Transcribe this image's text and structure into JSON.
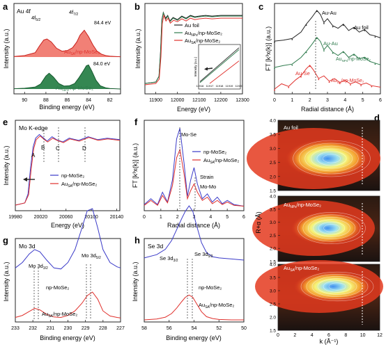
{
  "colors": {
    "black": "#222222",
    "red": "#e0302c",
    "red_fill": "#ee6a5e",
    "green": "#2e7a4c",
    "green_fill": "#1f7a3f",
    "blue": "#3a3ac8",
    "grid": "#999999"
  },
  "chart_data": [
    {
      "panel": "a",
      "type": "line",
      "xlabel": "Binding energy (eV)",
      "ylabel": "Intensity (a.u.)",
      "xlim": [
        91,
        81
      ],
      "xticks": [
        "90",
        "88",
        "86",
        "84",
        "82"
      ],
      "labels": {
        "title": "Au 4f",
        "f72": "4f",
        "f72_sub": "7/2",
        "f52": "4f",
        "f52_sub": "5/2",
        "e1": "84.4 eV",
        "e2": "84.0 eV",
        "s1": "Au",
        "s1_sub": "SA",
        "s1_rest": "/np-MoSe₂",
        "s2": "Au",
        "s2_sub": "NPs",
        "s2_rest": "/np-MoSe₂"
      },
      "series": [
        {
          "name": "Au_SA/np-MoSe₂",
          "color": "red",
          "x": [
            91,
            90,
            89,
            88.6,
            88.2,
            87.9,
            87.5,
            87,
            86.5,
            86,
            85.5,
            85.1,
            84.8,
            84.4,
            84.0,
            83.6,
            83.2,
            82.8,
            82.4,
            82,
            81.5,
            81
          ],
          "y": [
            0.02,
            0.05,
            0.15,
            0.38,
            0.58,
            0.62,
            0.52,
            0.3,
            0.2,
            0.22,
            0.32,
            0.52,
            0.75,
            0.92,
            0.7,
            0.42,
            0.2,
            0.1,
            0.05,
            0.03,
            0.02,
            0.01
          ]
        },
        {
          "name": "Au_NPs/np-MoSe₂",
          "color": "green",
          "x": [
            91,
            90,
            89,
            88.5,
            88.0,
            87.7,
            87.3,
            86.8,
            86.3,
            85.8,
            85.3,
            84.9,
            84.5,
            84.2,
            84.0,
            83.7,
            83.3,
            82.9,
            82.4,
            82,
            81.5,
            81
          ],
          "y": [
            0.01,
            0.03,
            0.08,
            0.2,
            0.52,
            0.63,
            0.48,
            0.22,
            0.12,
            0.13,
            0.22,
            0.45,
            0.72,
            0.93,
            0.96,
            0.72,
            0.35,
            0.13,
            0.05,
            0.02,
            0.01,
            0.0
          ]
        }
      ]
    },
    {
      "panel": "b",
      "type": "line",
      "xlabel": "Energy (eV)",
      "ylabel": "Intensity (a.u.)",
      "xlim": [
        11850,
        12300
      ],
      "xticks": [
        "11900",
        "12000",
        "12100",
        "12200",
        "12300"
      ],
      "legend": [
        {
          "label": "Au foil",
          "color": "black"
        },
        {
          "label": "Au",
          "sub": "NPs",
          "rest": "/np-MoSe₂",
          "color": "green"
        },
        {
          "label": "Au",
          "sub": "SA",
          "rest": "/np-MoSe₂",
          "color": "red"
        }
      ],
      "series": [
        {
          "name": "Au foil",
          "color": "black",
          "x": [
            11850,
            11900,
            11915,
            11922,
            11928,
            11935,
            11945,
            11955,
            11965,
            11980,
            12000,
            12020,
            12040,
            12060,
            12080,
            12100,
            12130,
            12160,
            12200,
            12250,
            12300
          ],
          "y": [
            0.0,
            0.02,
            0.1,
            0.45,
            0.9,
            1.0,
            0.92,
            0.96,
            0.88,
            0.93,
            0.9,
            0.95,
            0.92,
            0.96,
            0.94,
            0.95,
            0.96,
            0.95,
            0.96,
            0.96,
            0.96
          ]
        },
        {
          "name": "Au_NPs/np-MoSe₂",
          "color": "green",
          "x": [
            11850,
            11900,
            11915,
            11922,
            11928,
            11935,
            11945,
            11955,
            11965,
            11980,
            12000,
            12020,
            12040,
            12060,
            12080,
            12100,
            12130,
            12160,
            12200,
            12250,
            12300
          ],
          "y": [
            0.0,
            0.02,
            0.1,
            0.42,
            0.88,
            1.0,
            0.9,
            0.95,
            0.87,
            0.92,
            0.89,
            0.94,
            0.91,
            0.95,
            0.93,
            0.94,
            0.95,
            0.94,
            0.95,
            0.95,
            0.95
          ]
        },
        {
          "name": "Au_SA/np-MoSe₂",
          "color": "red",
          "x": [
            11850,
            11900,
            11916,
            11924,
            11930,
            11937,
            11947,
            11957,
            11967,
            11982,
            12000,
            12020,
            12040,
            12060,
            12080,
            12100,
            12130,
            12160,
            12200,
            12250,
            12300
          ],
          "y": [
            0.0,
            0.02,
            0.08,
            0.4,
            0.86,
            0.98,
            0.9,
            0.94,
            0.87,
            0.91,
            0.89,
            0.93,
            0.9,
            0.94,
            0.92,
            0.93,
            0.94,
            0.93,
            0.94,
            0.94,
            0.94
          ]
        }
      ],
      "inset": {
        "ylabel": "Intensity (a.u.)",
        "xticks": [
          "11916",
          "11917",
          "11918",
          "11919",
          "11920"
        ],
        "xlim": [
          11916,
          11920
        ],
        "series": [
          {
            "color": "black",
            "x": [
              11916,
              11920
            ],
            "y": [
              0.05,
              0.95
            ]
          },
          {
            "color": "green",
            "x": [
              11916,
              11920
            ],
            "y": [
              0.02,
              0.9
            ]
          },
          {
            "color": "red",
            "x": [
              11917,
              11920
            ],
            "y": [
              0.0,
              0.6
            ]
          }
        ]
      }
    },
    {
      "panel": "c",
      "type": "line",
      "xlabel": "Radial distance (Å)",
      "ylabel": "FT [k³x(k)] (a.u.)",
      "xlim": [
        0,
        6
      ],
      "xticks": [
        "0",
        "1",
        "2",
        "3",
        "4",
        "5",
        "6"
      ],
      "labels": {
        "au_au_1": "Au-Au",
        "au_foil": "Au foil",
        "au_au_2": "Au-Au",
        "au_nps": "Au",
        "au_nps_sub": "NPs",
        "au_nps_rest": "/np-MoSe₂",
        "au_se": "Au-Se",
        "au_sa": "Au",
        "au_sa_sub": "SA",
        "au_sa_rest": "/np-MoSe₂"
      },
      "series": [
        {
          "name": "Au foil",
          "color": "black",
          "x": [
            0,
            0.5,
            1,
            1.5,
            1.8,
            2.1,
            2.4,
            2.6,
            2.8,
            3.0,
            3.3,
            3.6,
            3.9,
            4.2,
            4.5,
            4.8,
            5.1,
            5.4,
            5.7,
            6
          ],
          "y": [
            0.02,
            0.05,
            0.1,
            0.3,
            0.55,
            0.75,
            0.98,
            0.85,
            0.6,
            0.72,
            0.5,
            0.42,
            0.55,
            0.35,
            0.45,
            0.3,
            0.38,
            0.22,
            0.18,
            0.12
          ]
        },
        {
          "name": "Au_NPs/np-MoSe₂",
          "color": "green",
          "x": [
            0,
            0.5,
            1,
            1.5,
            1.8,
            2.1,
            2.4,
            2.6,
            2.8,
            3.0,
            3.3,
            3.6,
            3.9,
            4.2,
            4.5,
            4.8,
            5.1,
            5.4,
            5.7,
            6
          ],
          "y": [
            0.02,
            0.08,
            0.12,
            0.32,
            0.5,
            0.7,
            0.92,
            0.8,
            0.55,
            0.68,
            0.48,
            0.38,
            0.5,
            0.32,
            0.42,
            0.28,
            0.33,
            0.2,
            0.15,
            0.1
          ]
        },
        {
          "name": "Au_SA/np-MoSe₂",
          "color": "red",
          "x": [
            0,
            0.4,
            0.8,
            1.2,
            1.5,
            1.8,
            2.0,
            2.2,
            2.5,
            2.8,
            3.1,
            3.4,
            3.7,
            4.0,
            4.3,
            4.6,
            4.9,
            5.2,
            5.5,
            6
          ],
          "y": [
            0.05,
            0.25,
            0.15,
            0.4,
            0.55,
            0.82,
            0.95,
            0.78,
            0.45,
            0.55,
            0.35,
            0.45,
            0.3,
            0.38,
            0.25,
            0.32,
            0.22,
            0.28,
            0.18,
            0.12
          ]
        }
      ]
    },
    {
      "panel": "e",
      "type": "line",
      "xlabel": "Energy (eV)",
      "ylabel": "Intensity (a.u.)",
      "xlim": [
        19980,
        20145
      ],
      "xticks": [
        "19980",
        "20020",
        "20060",
        "20100",
        "20140"
      ],
      "labels": {
        "title": "Mo  K-edge",
        "A": "A",
        "B": "B",
        "C": "C",
        "D": "D"
      },
      "legend": [
        {
          "label": "np-MoSe₂",
          "color": "blue"
        },
        {
          "label": "Au",
          "sub": "SA",
          "rest": "/np-MoSe₂",
          "color": "red"
        }
      ],
      "series": [
        {
          "name": "np-MoSe₂",
          "color": "blue",
          "x": [
            19980,
            19995,
            20000,
            20004,
            20008,
            20012,
            20018,
            20025,
            20030,
            20038,
            20045,
            20055,
            20065,
            20080,
            20095,
            20110,
            20125,
            20145
          ],
          "y": [
            0.0,
            0.03,
            0.15,
            0.5,
            0.78,
            0.9,
            0.95,
            0.9,
            0.86,
            0.92,
            0.88,
            0.85,
            0.9,
            0.87,
            0.92,
            0.88,
            0.9,
            0.88
          ]
        },
        {
          "name": "Au_SA/np-MoSe₂",
          "color": "red",
          "x": [
            19980,
            19995,
            20001,
            20005,
            20009,
            20013,
            20019,
            20026,
            20031,
            20039,
            20046,
            20056,
            20066,
            20081,
            20096,
            20111,
            20126,
            20145
          ],
          "y": [
            0.0,
            0.03,
            0.14,
            0.48,
            0.76,
            0.88,
            0.93,
            0.88,
            0.85,
            0.9,
            0.87,
            0.84,
            0.89,
            0.86,
            0.91,
            0.87,
            0.89,
            0.87
          ]
        }
      ]
    },
    {
      "panel": "f",
      "type": "line",
      "xlabel": "Radial distance (Å)",
      "ylabel": "FT [k³x(k)] (a.u.)",
      "xlim": [
        0,
        6
      ],
      "xticks": [
        "0",
        "1",
        "2",
        "3",
        "4",
        "5",
        "6"
      ],
      "labels": {
        "mose": "Mo-Se",
        "strain": "Strain",
        "momo": "Mo-Mo"
      },
      "legend": [
        {
          "label": "np-MoSe₂",
          "color": "blue"
        },
        {
          "label": "Au",
          "sub": "SA",
          "rest": "/np-MoSe₂",
          "color": "red"
        }
      ],
      "series": [
        {
          "name": "np-MoSe₂",
          "color": "blue",
          "x": [
            0,
            0.4,
            0.8,
            1.1,
            1.4,
            1.7,
            1.95,
            2.15,
            2.4,
            2.6,
            2.8,
            3.0,
            3.2,
            3.5,
            3.8,
            4.1,
            4.4,
            4.7,
            5.0,
            5.4,
            6
          ],
          "y": [
            0.05,
            0.12,
            0.05,
            0.2,
            0.08,
            0.35,
            0.85,
            0.98,
            0.55,
            0.15,
            0.35,
            0.5,
            0.3,
            0.12,
            0.18,
            0.08,
            0.14,
            0.06,
            0.1,
            0.05,
            0.03
          ]
        },
        {
          "name": "Au_SA/np-MoSe₂",
          "color": "red",
          "x": [
            0,
            0.4,
            0.8,
            1.1,
            1.4,
            1.7,
            1.95,
            2.15,
            2.4,
            2.6,
            2.8,
            3.0,
            3.2,
            3.5,
            3.8,
            4.1,
            4.4,
            4.7,
            5.0,
            5.4,
            6
          ],
          "y": [
            0.04,
            0.1,
            0.04,
            0.16,
            0.07,
            0.28,
            0.62,
            0.72,
            0.42,
            0.12,
            0.22,
            0.3,
            0.2,
            0.1,
            0.14,
            0.06,
            0.1,
            0.05,
            0.08,
            0.04,
            0.03
          ]
        }
      ]
    },
    {
      "panel": "g",
      "type": "line",
      "xlabel": "Binding energy (eV)",
      "ylabel": "Intensity (a.u.)",
      "xlim": [
        233,
        227
      ],
      "xticks": [
        "233",
        "232",
        "231",
        "230",
        "229",
        "228",
        "227"
      ],
      "labels": {
        "title": "Mo 3d",
        "d32": "Mo 3d",
        "d32_sub": "3/2",
        "d52": "Mo 3d",
        "d52_sub": "5/2",
        "s1": "np-MoSe₂",
        "s2": "Au",
        "s2_sub": "SA",
        "s2_rest": "/np-MoSe₂"
      },
      "series": [
        {
          "name": "np-MoSe₂",
          "color": "blue",
          "x": [
            233,
            232.6,
            232.2,
            231.9,
            231.6,
            231.2,
            230.8,
            230.4,
            230.0,
            229.6,
            229.2,
            228.9,
            228.6,
            228.3,
            228.0,
            227.6,
            227.2,
            227
          ],
          "y": [
            0.45,
            0.5,
            0.58,
            0.62,
            0.6,
            0.52,
            0.45,
            0.44,
            0.5,
            0.62,
            0.82,
            0.98,
            1.0,
            0.82,
            0.62,
            0.5,
            0.46,
            0.45
          ]
        },
        {
          "name": "Au_SA/np-MoSe₂",
          "color": "red",
          "x": [
            233,
            232.6,
            232.2,
            231.9,
            231.6,
            231.2,
            230.8,
            230.4,
            230.0,
            229.6,
            229.2,
            228.9,
            228.6,
            228.3,
            228.0,
            227.6,
            227.2,
            227
          ],
          "y": [
            0.02,
            0.06,
            0.14,
            0.2,
            0.17,
            0.08,
            0.03,
            0.02,
            0.06,
            0.15,
            0.3,
            0.45,
            0.52,
            0.38,
            0.15,
            0.05,
            0.02,
            0.01
          ]
        }
      ]
    },
    {
      "panel": "h",
      "type": "line",
      "xlabel": "Binding energy (eV)",
      "ylabel": "Intensity (a.u.)",
      "xlim": [
        58,
        50
      ],
      "xticks": [
        "58",
        "56",
        "54",
        "52",
        "50"
      ],
      "labels": {
        "title": "Se 3d",
        "d32": "Se 3d",
        "d32_sub": "3/2",
        "d52": "Se 3d",
        "d52_sub": "5/2",
        "s1": "np-MoSe₂",
        "s2": "Au",
        "s2_sub": "SA",
        "s2_rest": "/np-MoSe₂"
      },
      "series": [
        {
          "name": "np-MoSe₂",
          "color": "blue",
          "x": [
            58,
            57,
            56.3,
            55.8,
            55.4,
            55.0,
            54.7,
            54.4,
            54.1,
            53.8,
            53.4,
            53.0,
            52.5,
            52,
            51,
            50
          ],
          "y": [
            0.52,
            0.55,
            0.6,
            0.68,
            0.78,
            0.88,
            0.95,
            1.0,
            0.95,
            0.82,
            0.66,
            0.57,
            0.53,
            0.52,
            0.51,
            0.5
          ]
        },
        {
          "name": "Au_SA/np-MoSe₂",
          "color": "red",
          "x": [
            58,
            57,
            56.3,
            55.8,
            55.4,
            55.0,
            54.7,
            54.4,
            54.1,
            53.8,
            53.4,
            53.0,
            52.5,
            52,
            51,
            50
          ],
          "y": [
            0.0,
            0.02,
            0.06,
            0.14,
            0.26,
            0.4,
            0.5,
            0.55,
            0.5,
            0.36,
            0.18,
            0.07,
            0.03,
            0.01,
            0.0,
            0.0
          ]
        }
      ]
    },
    {
      "panel": "d",
      "type": "heatmap",
      "xlabel": "k (Å⁻¹)",
      "ylabel": "R+α (Å)",
      "xlim": [
        0,
        12
      ],
      "ylim": [
        1.5,
        4.0
      ],
      "xticks": [
        "0",
        "2",
        "4",
        "6",
        "8",
        "10",
        "12"
      ],
      "yticks": [
        "1.5",
        "2.0",
        "2.5",
        "3.0",
        "3.5",
        "4.0"
      ],
      "maps": [
        {
          "title": "Au foil"
        },
        {
          "title": "Au",
          "sub": "NPs",
          "rest": "/np-MoSe₂"
        },
        {
          "title": "Au",
          "sub": "SA",
          "rest": "/np-MoSe₂"
        }
      ]
    }
  ],
  "panel_letters": [
    "a",
    "b",
    "c",
    "d",
    "e",
    "f",
    "g",
    "h"
  ]
}
